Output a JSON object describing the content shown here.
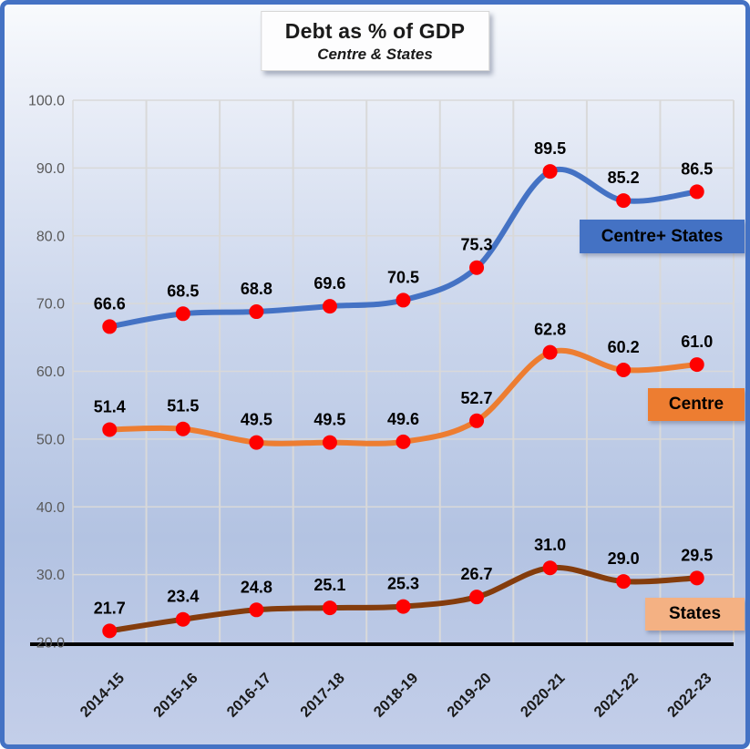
{
  "title": {
    "line1": "Debt as % of GDP",
    "line2": "Centre & States"
  },
  "chart_data": {
    "type": "line",
    "categories": [
      "2014-15",
      "2015-16",
      "2016-17",
      "2017-18",
      "2018-19",
      "2019-20",
      "2020-21",
      "2021-22",
      "2022-23"
    ],
    "series": [
      {
        "name": "Centre+ States",
        "color": "#4472C4",
        "values": [
          66.6,
          68.5,
          68.8,
          69.6,
          70.5,
          75.3,
          89.5,
          85.2,
          86.5
        ]
      },
      {
        "name": "Centre",
        "color": "#ED7D31",
        "values": [
          51.4,
          51.5,
          49.5,
          49.5,
          49.6,
          52.7,
          62.8,
          60.2,
          61.0
        ]
      },
      {
        "name": "States",
        "color": "#843C0C",
        "values": [
          21.7,
          23.4,
          24.8,
          25.1,
          25.3,
          26.7,
          31.0,
          29.0,
          29.5
        ]
      }
    ],
    "marker_color": "#FF0000",
    "ylim": [
      20,
      100
    ],
    "ytick_step": 10,
    "ytick_labels": [
      "20.0",
      "30.0",
      "40.0",
      "50.0",
      "60.0",
      "70.0",
      "80.0",
      "90.0",
      "100.0"
    ],
    "grid": true,
    "gridline_color": "#D9D9D9",
    "axis_line_color": "#000000",
    "tick_label_color": "#595959",
    "data_label_color": "#000000",
    "legend_position": "right-inside"
  },
  "legend": {
    "items": [
      {
        "label": "Centre+ States",
        "bg": "#4472C4"
      },
      {
        "label": "Centre",
        "bg": "#ED7D31"
      },
      {
        "label": "States",
        "bg": "#F4B183"
      }
    ]
  },
  "frame": {
    "border_color": "#4472C4"
  }
}
